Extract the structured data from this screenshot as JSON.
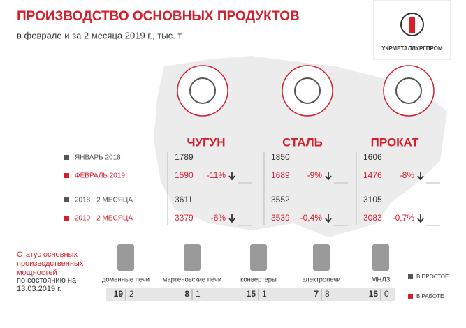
{
  "header": {
    "title": "ПРОИЗВОДСТВО ОСНОВНЫХ ПРОДУКТОВ",
    "subtitle": "в феврале и за 2 месяца 2019 г., тыс. т",
    "logo": "УКРМЕТАЛЛУРГПРОМ"
  },
  "rows": [
    "ЯНВАРЬ 2018",
    "ФЕВРАЛЬ 2019",
    "2018 - 2 МЕСЯЦА",
    "2019 - 2 МЕСЯЦА"
  ],
  "products": [
    {
      "name": "ЧУГУН",
      "values": [
        1789,
        1590,
        3611,
        3379
      ],
      "changes": [
        "-11%",
        "-6%"
      ]
    },
    {
      "name": "СТАЛЬ",
      "values": [
        1850,
        1689,
        3552,
        3539
      ],
      "changes": [
        "-9%",
        "-0,4%"
      ]
    },
    {
      "name": "ПРОКАТ",
      "values": [
        1606,
        1476,
        3105,
        3083
      ],
      "changes": [
        "-8%",
        "-0,7%"
      ]
    }
  ],
  "status": {
    "title": "Статус основных производственных мощностей",
    "date": "по состоянию на 13.03.2019 г."
  },
  "facilities": [
    {
      "name": "доменные печи",
      "counts": [
        19,
        2
      ]
    },
    {
      "name": "мартеновские печи",
      "counts": [
        8,
        1
      ]
    },
    {
      "name": "конвертеры",
      "counts": [
        15,
        1
      ]
    },
    {
      "name": "электропечи",
      "counts": [
        7,
        8
      ]
    },
    {
      "name": "МНЛЗ",
      "counts": [
        15,
        0
      ]
    }
  ],
  "legend": [
    "В ПРОСТОЕ",
    "В РАБОТЕ"
  ]
}
